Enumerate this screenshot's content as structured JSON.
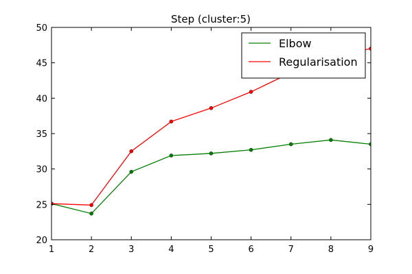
{
  "chart_data": {
    "type": "line",
    "title": "Step (cluster:5)",
    "xlabel": "",
    "ylabel": "",
    "xlim": [
      1,
      9
    ],
    "ylim": [
      20,
      50
    ],
    "x": [
      1,
      2,
      3,
      4,
      5,
      6,
      7,
      8,
      9
    ],
    "xticks": [
      "1",
      "2",
      "3",
      "4",
      "5",
      "6",
      "7",
      "8",
      "9"
    ],
    "yticks": [
      "20",
      "25",
      "30",
      "35",
      "40",
      "45",
      "50"
    ],
    "grid": false,
    "legend_position": "top-right",
    "series": [
      {
        "name": "Elbow",
        "color": "#008000",
        "values": [
          25.1,
          23.7,
          29.6,
          31.9,
          32.2,
          32.7,
          33.5,
          34.1,
          33.5
        ]
      },
      {
        "name": "Regularisation",
        "color": "#ff0000",
        "values": [
          25.1,
          24.9,
          32.5,
          36.7,
          38.6,
          40.9,
          43.6,
          45.9,
          47.0
        ]
      }
    ]
  }
}
